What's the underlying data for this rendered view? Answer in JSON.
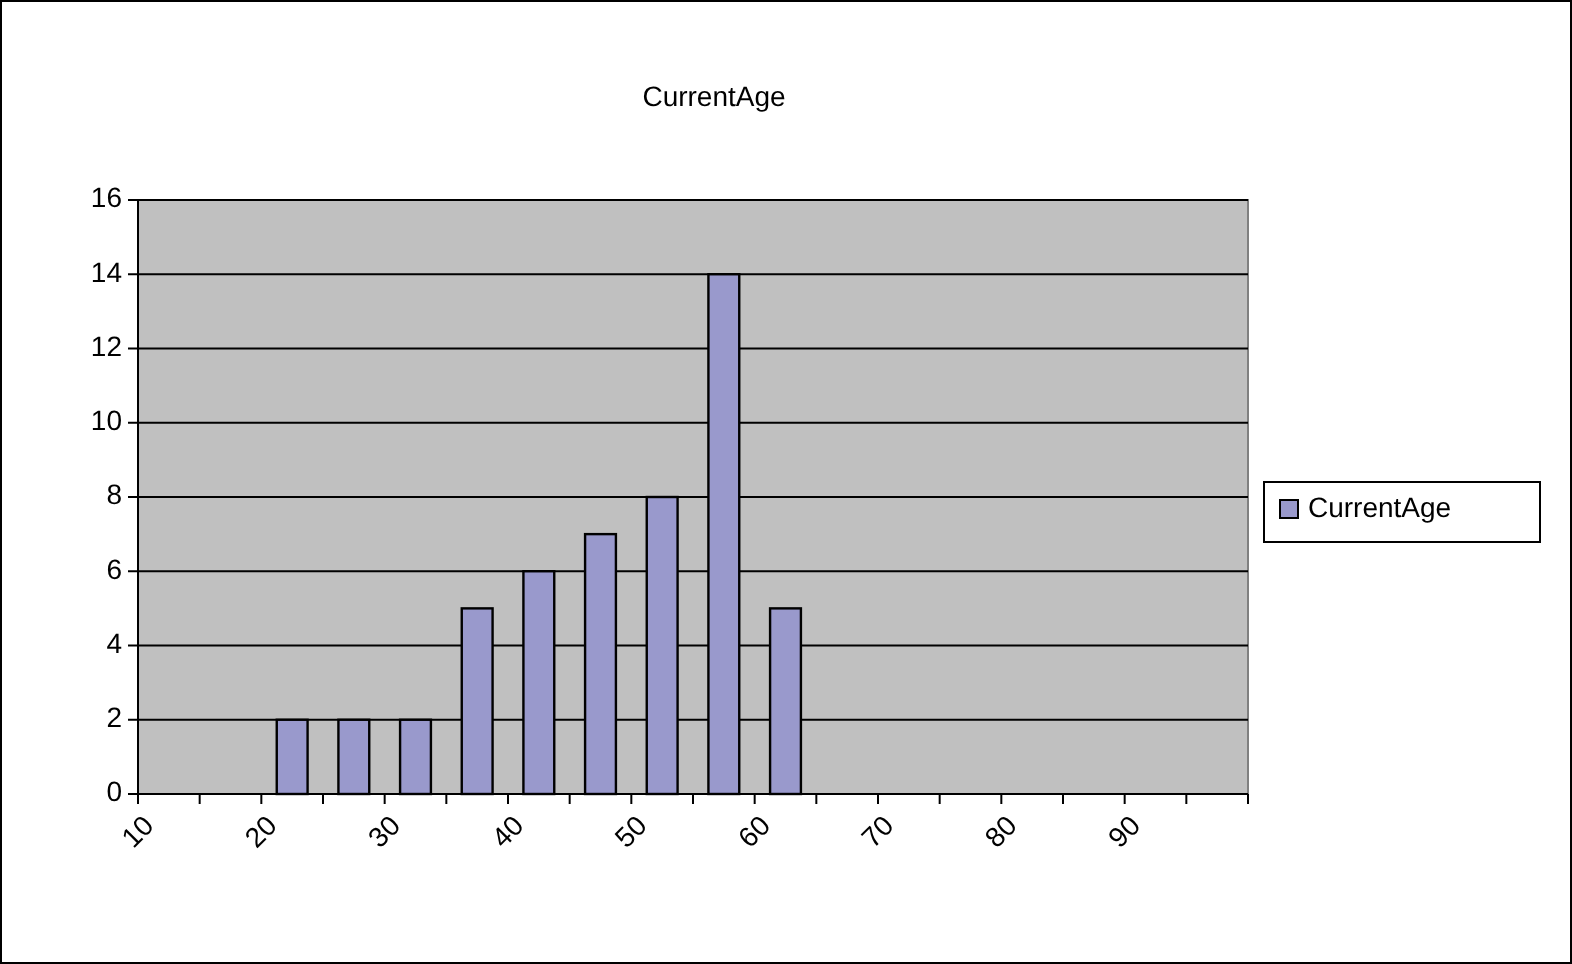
{
  "chart_data": {
    "type": "histogram",
    "title": "CurrentAge",
    "bins": [
      10,
      15,
      20,
      25,
      30,
      35,
      40,
      45,
      50,
      55,
      60,
      65,
      70,
      75,
      80,
      85,
      90,
      95,
      100
    ],
    "series": [
      {
        "name": "CurrentAge",
        "color": "#9999cc",
        "values": [
          0,
          0,
          2,
          2,
          2,
          5,
          6,
          7,
          8,
          14,
          5,
          0,
          0,
          0,
          0,
          0,
          0,
          0
        ]
      }
    ],
    "xlim": [
      10,
      100
    ],
    "xticks": [
      10,
      {
        "value": 15,
        "label": null
      },
      20,
      {
        "value": 25,
        "label": null
      },
      30,
      {
        "value": 35,
        "label": null
      },
      40,
      {
        "value": 45,
        "label": null
      },
      50,
      {
        "value": 55,
        "label": null
      },
      60,
      {
        "value": 65,
        "label": null
      },
      70,
      {
        "value": 75,
        "label": null
      },
      80,
      {
        "value": 85,
        "label": null
      },
      90,
      {
        "value": 95,
        "label": null
      },
      {
        "value": 100,
        "label": null
      }
    ],
    "ylim": [
      0,
      16
    ],
    "yticks": [
      0,
      2,
      4,
      6,
      8,
      10,
      12,
      14,
      16
    ],
    "grid": "y",
    "legend": "right"
  }
}
